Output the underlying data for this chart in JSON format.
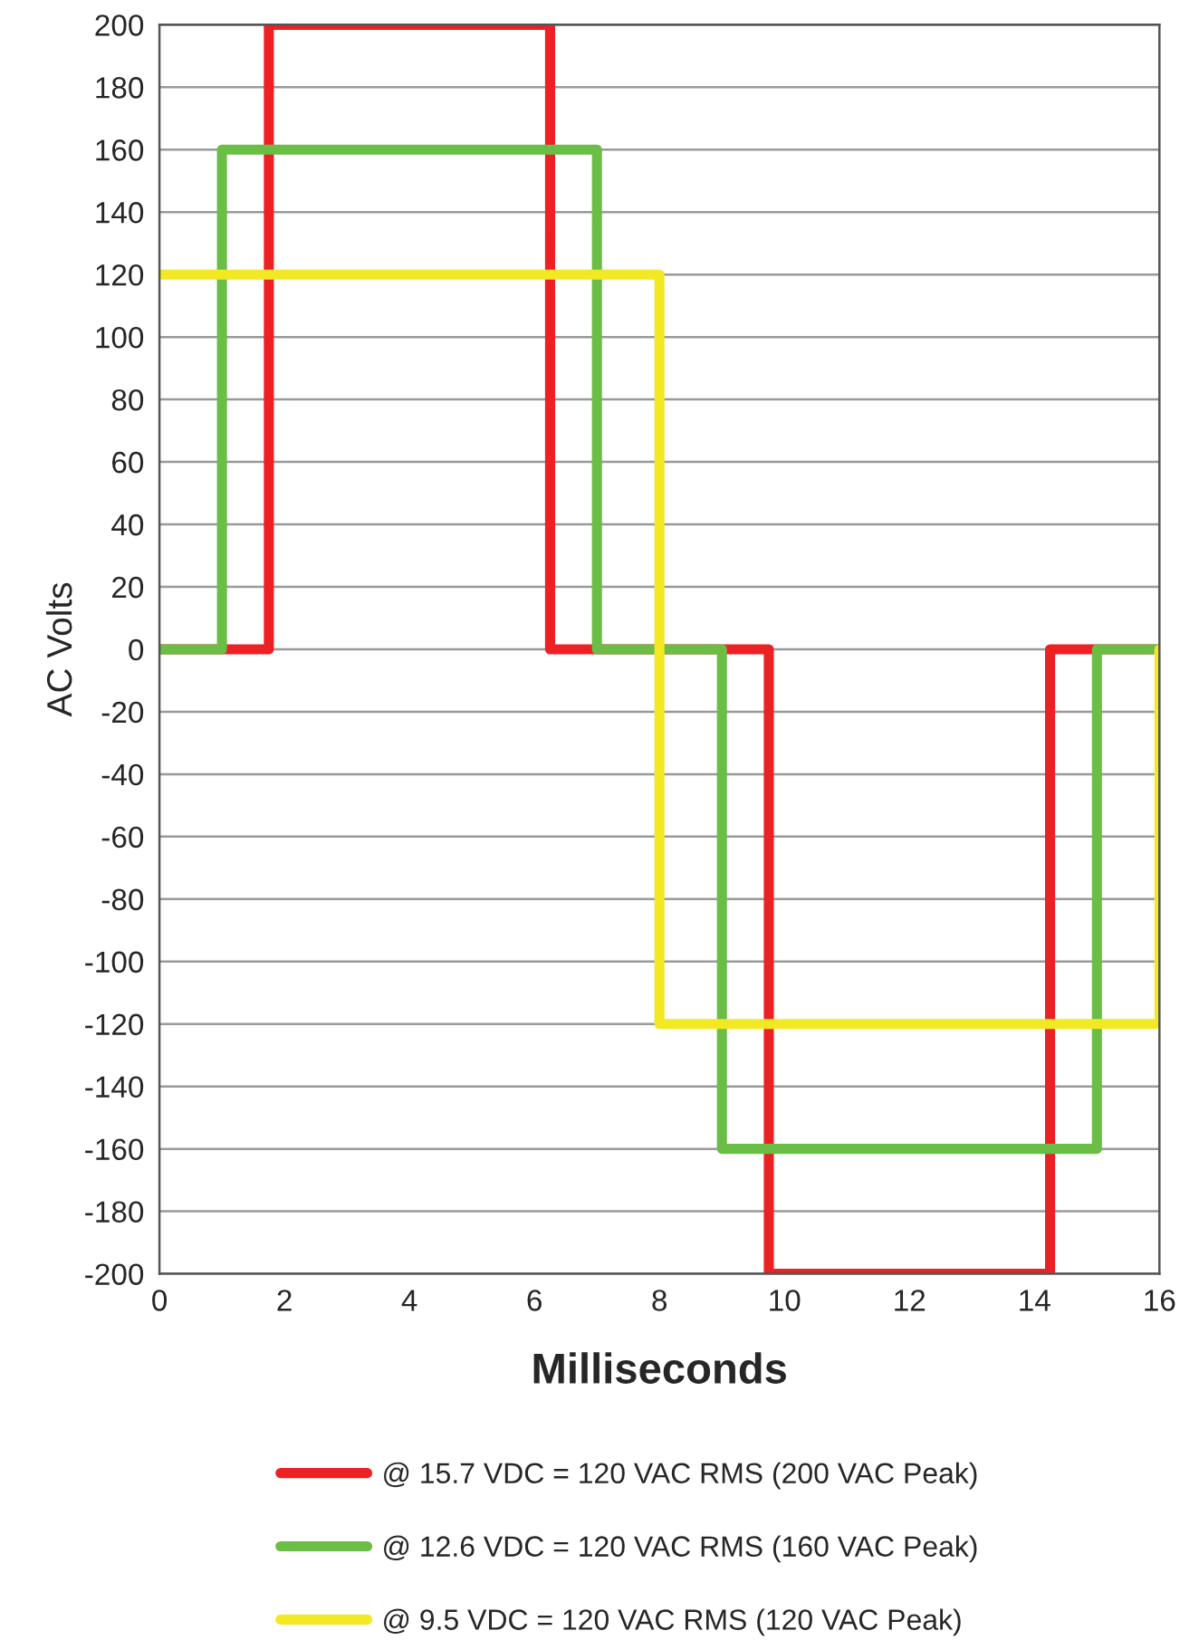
{
  "chart_data": {
    "type": "step",
    "xlabel": "Milliseconds",
    "ylabel": "AC Volts",
    "xlim": [
      0,
      16
    ],
    "xticks": [
      0,
      2,
      4,
      6,
      8,
      10,
      12,
      14,
      16
    ],
    "ylim": [
      -200,
      200
    ],
    "yticks": [
      -200,
      -180,
      -160,
      -140,
      -120,
      -100,
      -80,
      -60,
      -40,
      -20,
      0,
      20,
      40,
      60,
      80,
      100,
      120,
      140,
      160,
      180,
      200
    ],
    "grid": "y",
    "legend": "bottom",
    "series": [
      {
        "name": "@ 15.7 VDC = 120 VAC RMS (200 VAC Peak)",
        "color": "#ed2024",
        "x": [
          0,
          1.75,
          6.25,
          9.75,
          14.25,
          16
        ],
        "values": [
          0,
          200,
          0,
          -200,
          0,
          0
        ]
      },
      {
        "name": "@ 12.6 VDC = 120 VAC RMS (160 VAC Peak)",
        "color": "#6abd45",
        "x": [
          0,
          1,
          7,
          9,
          15,
          16
        ],
        "values": [
          0,
          160,
          0,
          -160,
          0,
          0
        ]
      },
      {
        "name": "@ 9.5 VDC = 120 VAC RMS (120 VAC Peak)",
        "color": "#f2e824",
        "x": [
          0,
          8,
          16
        ],
        "values": [
          120,
          -120,
          0
        ]
      }
    ]
  }
}
